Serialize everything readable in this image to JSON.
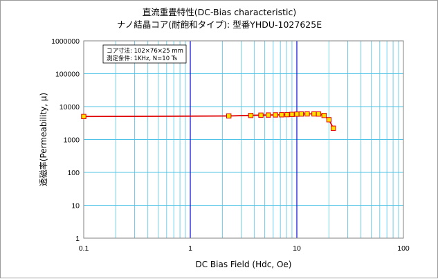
{
  "chart_data": {
    "type": "line",
    "title_line1": "直流重畳特性(DC-Bias characteristic)",
    "title_line2": "ナノ結晶コア(耐飽和タイプ):  型番YHDU-1027625E",
    "xlabel": "DC Bias Field (Hdc, Oe)",
    "ylabel": "透磁率(Permeability, μ)",
    "x_scale": "log",
    "y_scale": "log",
    "xlim": [
      0.1,
      100
    ],
    "ylim": [
      1,
      1000000
    ],
    "x_ticks": [
      "0.1",
      "1",
      "10",
      "100"
    ],
    "y_ticks": [
      "1",
      "10",
      "100",
      "1000",
      "10000",
      "100000",
      "1000000"
    ],
    "grid": true,
    "annotation": {
      "line1": "コア寸法:  102×76×25 mm",
      "line2": "測定条件:  1KHz,   N=10 Ts"
    },
    "series": [
      {
        "color": "#e00000",
        "marker_fill": "#ffe000",
        "marker_edge": "#e00000",
        "x": [
          0.1,
          2.3,
          3.7,
          4.6,
          5.4,
          6.3,
          7.2,
          8.1,
          9.0,
          10.0,
          11.0,
          12.5,
          14.5,
          16.0,
          18.0,
          20.0,
          22.0
        ],
        "y": [
          5000,
          5200,
          5400,
          5500,
          5550,
          5600,
          5650,
          5700,
          5800,
          5900,
          5950,
          6000,
          6000,
          5950,
          5400,
          4000,
          2200
        ]
      }
    ],
    "colors": {
      "plot_background": "#ffffff",
      "minor_gridline": "#4fc3e6",
      "major_gridline": "#1a1ad8"
    }
  }
}
